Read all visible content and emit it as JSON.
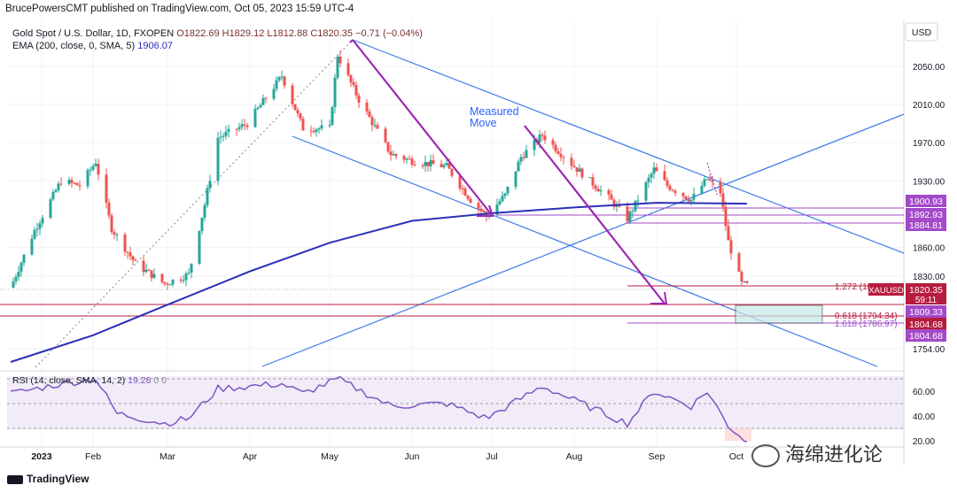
{
  "header": {
    "publish_line": "BrucePowersCMT published on TradingView.com, Oct 05, 2023 15:59 UTC-4"
  },
  "legend": {
    "symbol": "Gold Spot / U.S. Dollar, 1D, FXOPEN",
    "ohlc": "O1822.69 H1829.12 L1812.88 C1820.35 −0.71 (−0.04%)",
    "ema_label": "EMA (200, close, 0, SMA, 5)",
    "ema_value": "1906.07",
    "rsi_label": "RSI (14, close, SMA, 14, 2)",
    "rsi_value": "19.28",
    "rsi_extra": "0 0"
  },
  "currency": "USD",
  "annotation": {
    "line1": "Measured",
    "line2": "Move"
  },
  "fib_labels": {
    "f1272": "1.272 (1820...)",
    "f0618": "0.618 (1794.34)",
    "f1618": "1.618 (1786.97)"
  },
  "price_tags": {
    "ticker": "XAUUSD",
    "last": "1820.35",
    "countdown": "59:11",
    "p1900": "1900.93",
    "p1892": "1892.93",
    "p1884": "1884.81",
    "p1809": "1809.33",
    "p1804a": "1804.68",
    "p1804b": "1804.68"
  },
  "price_axis_ticks": [
    "2050.00",
    "2010.00",
    "1970.00",
    "1930.00",
    "1860.00",
    "1830.00",
    "1754.00"
  ],
  "rsi_axis_ticks": [
    "60.00",
    "40.00",
    "20.00"
  ],
  "time_axis": [
    "2023",
    "Feb",
    "Mar",
    "Apr",
    "May",
    "Jun",
    "Jul",
    "Aug",
    "Sep",
    "Oct"
  ],
  "branding": "TradingView",
  "watermark": "海绵进化论",
  "colors": {
    "up": "#26a69a",
    "down": "#ef5350",
    "ema": "#2a2fb8",
    "channel": "#3d7be8",
    "arrow": "#9c27b0",
    "rsi": "#7e57c2",
    "fib_red": "#b71c3c",
    "hline_purple": "#a349c9"
  },
  "chart_data": {
    "type": "candlestick",
    "symbol": "XAUUSD",
    "timeframe": "1D",
    "ylim": [
      1740,
      2070
    ],
    "horizontal_levels": [
      1900.93,
      1892.93,
      1884.81,
      1820.35,
      1809.33,
      1804.68
    ],
    "fib_levels": [
      {
        "ratio": 1.272
      },
      {
        "ratio": 0.618,
        "price": 1794.34
      },
      {
        "ratio": 1.618,
        "price": 1786.97
      }
    ],
    "price_path": [
      [
        "2023-01-01",
        1818
      ],
      [
        "2023-01-10",
        1878
      ],
      [
        "2023-01-20",
        1930
      ],
      [
        "2023-01-27",
        1925
      ],
      [
        "2023-02-02",
        1950
      ],
      [
        "2023-02-08",
        1880
      ],
      [
        "2023-02-17",
        1843
      ],
      [
        "2023-02-28",
        1822
      ],
      [
        "2023-03-09",
        1832
      ],
      [
        "2023-03-15",
        1905
      ],
      [
        "2023-03-20",
        1975
      ],
      [
        "2023-03-31",
        1990
      ],
      [
        "2023-04-13",
        2040
      ],
      [
        "2023-04-21",
        1985
      ],
      [
        "2023-05-01",
        1985
      ],
      [
        "2023-05-04",
        2062
      ],
      [
        "2023-05-12",
        2015
      ],
      [
        "2023-05-24",
        1958
      ],
      [
        "2023-06-02",
        1950
      ],
      [
        "2023-06-14",
        1945
      ],
      [
        "2023-06-23",
        1910
      ],
      [
        "2023-06-29",
        1893
      ],
      [
        "2023-07-06",
        1915
      ],
      [
        "2023-07-12",
        1955
      ],
      [
        "2023-07-20",
        1978
      ],
      [
        "2023-08-01",
        1945
      ],
      [
        "2023-08-14",
        1912
      ],
      [
        "2023-08-21",
        1890
      ],
      [
        "2023-08-31",
        1942
      ],
      [
        "2023-09-05",
        1925
      ],
      [
        "2023-09-14",
        1910
      ],
      [
        "2023-09-20",
        1932
      ],
      [
        "2023-09-25",
        1918
      ],
      [
        "2023-09-28",
        1866
      ],
      [
        "2023-10-03",
        1822
      ],
      [
        "2023-10-05",
        1820.35
      ]
    ],
    "ema200_path": [
      [
        "2023-01-01",
        1740
      ],
      [
        "2023-02-01",
        1768
      ],
      [
        "2023-03-01",
        1800
      ],
      [
        "2023-04-01",
        1835
      ],
      [
        "2023-05-01",
        1865
      ],
      [
        "2023-06-01",
        1888
      ],
      [
        "2023-07-01",
        1896
      ],
      [
        "2023-08-01",
        1902
      ],
      [
        "2023-09-01",
        1907
      ],
      [
        "2023-10-05",
        1906.07
      ]
    ],
    "rsi_path": [
      [
        "2023-01-01",
        58
      ],
      [
        "2023-01-20",
        66
      ],
      [
        "2023-02-02",
        70
      ],
      [
        "2023-02-10",
        42
      ],
      [
        "2023-02-28",
        34
      ],
      [
        "2023-03-09",
        38
      ],
      [
        "2023-03-20",
        62
      ],
      [
        "2023-04-13",
        66
      ],
      [
        "2023-04-21",
        58
      ],
      [
        "2023-05-04",
        70
      ],
      [
        "2023-05-24",
        48
      ],
      [
        "2023-06-14",
        50
      ],
      [
        "2023-06-29",
        38
      ],
      [
        "2023-07-20",
        64
      ],
      [
        "2023-08-21",
        34
      ],
      [
        "2023-08-31",
        60
      ],
      [
        "2023-09-14",
        48
      ],
      [
        "2023-09-20",
        60
      ],
      [
        "2023-09-28",
        32
      ],
      [
        "2023-10-05",
        19.28
      ]
    ],
    "rsi_ylim": [
      10,
      80
    ],
    "rsi_levels": [
      70,
      50,
      30
    ]
  }
}
